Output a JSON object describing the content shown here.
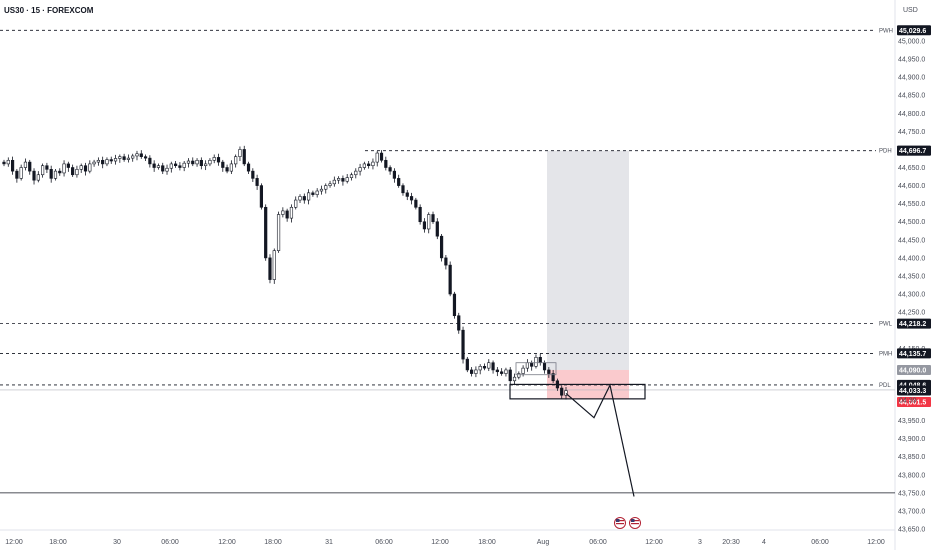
{
  "header": {
    "symbol_title": "US30 · 15 · FOREXCOM",
    "currency": "USD"
  },
  "chart_data": {
    "type": "candlestick",
    "ylim": [
      43640,
      45100
    ],
    "y_ticks": [
      {
        "value": 45000,
        "label": "45,000.0"
      },
      {
        "value": 44950,
        "label": "44,950.0"
      },
      {
        "value": 44900,
        "label": "44,900.0"
      },
      {
        "value": 44850,
        "label": "44,850.0"
      },
      {
        "value": 44800,
        "label": "44,800.0"
      },
      {
        "value": 44750,
        "label": "44,750.0"
      },
      {
        "value": 44650,
        "label": "44,650.0"
      },
      {
        "value": 44600,
        "label": "44,600.0"
      },
      {
        "value": 44550,
        "label": "44,550.0"
      },
      {
        "value": 44500,
        "label": "44,500.0"
      },
      {
        "value": 44450,
        "label": "44,450.0"
      },
      {
        "value": 44400,
        "label": "44,400.0"
      },
      {
        "value": 44350,
        "label": "44,350.0"
      },
      {
        "value": 44300,
        "label": "44,300.0"
      },
      {
        "value": 44250,
        "label": "44,250.0"
      },
      {
        "value": 44150,
        "label": "44,150.0"
      },
      {
        "value": 43950,
        "label": "43,950.0"
      },
      {
        "value": 43900,
        "label": "43,900.0"
      },
      {
        "value": 43850,
        "label": "43,850.0"
      },
      {
        "value": 43800,
        "label": "43,800.0"
      },
      {
        "value": 43750,
        "label": "43,750.0"
      },
      {
        "value": 43700,
        "label": "43,700.0"
      },
      {
        "value": 43650,
        "label": "43,650.0"
      }
    ],
    "x_ticks": [
      "12:00",
      "18:00",
      "30",
      "06:00",
      "12:00",
      "18:00",
      "31",
      "06:00",
      "12:00",
      "18:00",
      "Aug",
      "06:00",
      "12:00",
      "3",
      "20:30",
      "4",
      "06:00",
      "12:00"
    ],
    "levels": [
      {
        "name": "PWH",
        "value": 45029.6,
        "label": "45,029.6",
        "style": "dashed",
        "tag_color": "#131722"
      },
      {
        "name": "PDH",
        "value": 44696.5,
        "label": "44,696.5",
        "style": "dashed",
        "tag_color": "#9598a1"
      },
      {
        "name": "PWL",
        "value": 44218.2,
        "label": "44,218.2",
        "style": "dashed",
        "tag_color": "#131722"
      },
      {
        "name": "PMH",
        "value": 44135.7,
        "label": "44,135.7",
        "style": "dashed",
        "tag_color": "#131722"
      },
      {
        "name": "PDL",
        "value": 44048.6,
        "label": "44,048.6",
        "style": "dashed",
        "tag_color": "#131722"
      }
    ],
    "price_tags": [
      {
        "value": 44696.7,
        "label": "44,696.7",
        "color": "#131722"
      },
      {
        "value": 44090.0,
        "label": "44,090.0",
        "color": "#9598a1"
      },
      {
        "value": 44033.3,
        "label": "44,033.3",
        "color": "#131722"
      },
      {
        "value": 44001.5,
        "label": "44,001.5",
        "color": "#f23645"
      }
    ],
    "countdown": "04:39",
    "close_series": [
      44660,
      44670,
      44640,
      44620,
      44650,
      44665,
      44640,
      44615,
      44630,
      44655,
      44645,
      44620,
      44640,
      44635,
      44660,
      44650,
      44630,
      44645,
      44655,
      44640,
      44660,
      44665,
      44670,
      44660,
      44672,
      44668,
      44675,
      44680,
      44672,
      44676,
      44682,
      44688,
      44680,
      44676,
      44660,
      44650,
      44655,
      44640,
      44648,
      44660,
      44655,
      44650,
      44662,
      44668,
      44660,
      44670,
      44655,
      44660,
      44670,
      44678,
      44665,
      44650,
      44640,
      44660,
      44680,
      44700,
      44660,
      44640,
      44620,
      44600,
      44540,
      44400,
      44340,
      44420,
      44520,
      44530,
      44510,
      44540,
      44560,
      44570,
      44560,
      44580,
      44575,
      44585,
      44590,
      44600,
      44605,
      44615,
      44620,
      44612,
      44622,
      44630,
      44640,
      44650,
      44660,
      44655,
      44665,
      44690,
      44670,
      44650,
      44640,
      44620,
      44600,
      44580,
      44570,
      44560,
      44540,
      44500,
      44480,
      44520,
      44500,
      44460,
      44400,
      44380,
      44300,
      44240,
      44200,
      44120,
      44090,
      44080,
      44090,
      44100,
      44095,
      44110,
      44090,
      44085,
      44080,
      44090,
      44060,
      44070,
      44080,
      44095,
      44110,
      44100,
      44125,
      44110,
      44090,
      44080,
      44060,
      44040,
      44020,
      44033
    ],
    "candle_time_range": [
      "12:00",
      "Aug 06:00"
    ],
    "annotations": {
      "short_position": {
        "entry": 44090,
        "stop": 44050,
        "target": 44696.5
      },
      "projection_path": [
        44025,
        43958,
        44048,
        43740
      ],
      "bottom_level": 43750,
      "box_zone": [
        44010,
        44050
      ]
    },
    "grid": false,
    "legend": "none"
  },
  "colors": {
    "up": "#131722",
    "down": "#131722",
    "target_zone": "#e3e4e8",
    "stop_zone": "#f9c4c8",
    "axis_text": "#4a4e59"
  },
  "event_icons": [
    "us-flag-icon",
    "us-flag-icon"
  ]
}
